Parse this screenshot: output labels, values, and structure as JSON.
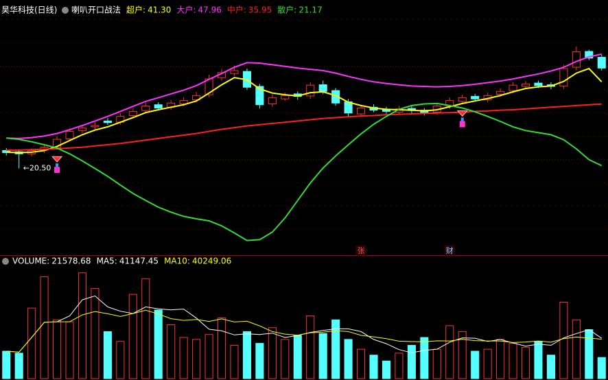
{
  "chart_data": [
    {
      "type": "candlestick",
      "title": "昊华科技(日线)",
      "subtitle": "喇叭开口战法",
      "separator": ":",
      "up_color": "#ff3232",
      "down_color": "#54ffff",
      "ylim": [
        0,
        57
      ],
      "open": [
        24.8,
        24.5,
        24.0,
        24.9,
        25.5,
        27.6,
        29.6,
        30.5,
        31.9,
        31.6,
        33.2,
        34.4,
        35.8,
        35.2,
        36.0,
        37.0,
        38.2,
        42.3,
        43.3,
        43.8,
        40.2,
        36.0,
        37.2,
        38.4,
        37.9,
        40.6,
        39.2,
        36.5,
        33.6,
        35.2,
        34.7,
        34.0,
        34.9,
        34.5,
        34.0,
        35.4,
        36.6,
        37.8,
        37.0,
        38.3,
        39.2,
        40.2,
        41.0,
        40.6,
        40.3,
        44.8,
        48.6,
        47.2
      ],
      "high": [
        25.4,
        25.0,
        25.3,
        26.2,
        28.2,
        30.1,
        30.9,
        31.6,
        32.6,
        33.8,
        34.9,
        36.3,
        36.4,
        36.9,
        37.6,
        38.9,
        43.0,
        44.4,
        45.2,
        44.5,
        40.8,
        38.3,
        38.7,
        39.0,
        41.2,
        41.6,
        39.8,
        37.2,
        35.7,
        35.9,
        35.3,
        35.5,
        35.6,
        35.0,
        36.2,
        37.5,
        38.2,
        38.4,
        38.7,
        39.7,
        41.2,
        41.5,
        41.6,
        41.2,
        45.4,
        49.8,
        49.0,
        47.8
      ],
      "low": [
        23.6,
        20.5,
        23.4,
        24.2,
        25.0,
        27.0,
        29.0,
        29.9,
        30.9,
        31.0,
        32.6,
        33.9,
        34.4,
        34.6,
        35.4,
        36.4,
        37.6,
        41.6,
        42.7,
        39.4,
        34.9,
        35.3,
        36.8,
        37.0,
        37.2,
        38.4,
        35.6,
        33.0,
        33.0,
        34.0,
        33.6,
        33.5,
        33.8,
        33.2,
        33.4,
        34.8,
        36.0,
        36.6,
        36.4,
        37.7,
        38.6,
        39.6,
        39.8,
        39.5,
        39.6,
        44.0,
        46.5,
        44.0
      ],
      "close": [
        24.3,
        24.0,
        24.8,
        25.6,
        27.5,
        29.4,
        30.2,
        30.8,
        31.5,
        33.0,
        34.2,
        35.5,
        35.0,
        36.2,
        36.8,
        38.0,
        42.0,
        43.5,
        44.0,
        40.0,
        35.8,
        37.5,
        38.0,
        37.8,
        40.5,
        39.0,
        36.2,
        33.8,
        35.0,
        34.5,
        34.2,
        34.8,
        34.4,
        33.9,
        35.5,
        36.8,
        37.5,
        37.2,
        38.0,
        39.0,
        40.5,
        40.8,
        40.4,
        40.2,
        44.5,
        48.5,
        47.0,
        44.6
      ],
      "series": [
        {
          "name": "超户",
          "color": "#ffff00",
          "values": [
            24.4,
            24.3,
            24.4,
            24.8,
            25.8,
            27.2,
            28.6,
            29.7,
            30.5,
            31.6,
            32.7,
            33.9,
            34.6,
            35.2,
            35.8,
            36.7,
            38.6,
            40.6,
            42.3,
            41.8,
            39.6,
            38.6,
            38.2,
            37.9,
            38.7,
            38.9,
            38.0,
            36.4,
            35.6,
            35.0,
            34.7,
            34.6,
            34.5,
            34.3,
            34.6,
            35.3,
            36.1,
            36.7,
            37.3,
            38.0,
            38.9,
            39.7,
            40.1,
            40.3,
            41.4,
            43.4,
            44.5,
            41.3
          ],
          "value_labels": [
            null,
            null,
            null,
            null,
            null,
            null,
            null,
            null,
            null,
            null,
            null,
            null,
            null,
            null,
            null,
            null,
            null,
            null,
            null,
            null,
            null,
            null,
            null,
            null,
            null,
            null,
            null,
            null,
            null,
            null,
            null,
            null,
            null,
            null,
            null,
            null,
            null,
            null,
            null,
            null,
            null,
            null,
            null,
            null,
            null,
            null,
            null,
            "41.30"
          ]
        },
        {
          "name": "大户",
          "color": "#ff33ff",
          "values": [
            27.8,
            27.7,
            27.9,
            28.3,
            28.9,
            29.8,
            30.8,
            31.9,
            33.0,
            34.2,
            35.4,
            36.6,
            37.5,
            38.4,
            39.3,
            40.4,
            41.9,
            43.3,
            44.8,
            45.9,
            45.8,
            45.4,
            45.0,
            44.6,
            44.3,
            44.0,
            43.4,
            42.6,
            41.9,
            41.3,
            40.9,
            40.6,
            40.3,
            40.2,
            40.1,
            40.2,
            40.4,
            40.7,
            41.1,
            41.5,
            42.0,
            42.6,
            43.2,
            43.9,
            44.8,
            46.2,
            47.3,
            47.96
          ]
        },
        {
          "name": "中户",
          "color": "#ff2020",
          "values": [
            24.9,
            24.9,
            25.0,
            25.1,
            25.2,
            25.4,
            25.6,
            25.9,
            26.2,
            26.5,
            26.9,
            27.3,
            27.7,
            28.1,
            28.5,
            28.9,
            29.4,
            29.9,
            30.3,
            30.7,
            31.0,
            31.3,
            31.6,
            31.9,
            32.2,
            32.5,
            32.7,
            32.9,
            33.1,
            33.2,
            33.4,
            33.5,
            33.6,
            33.7,
            33.8,
            33.9,
            34.0,
            34.2,
            34.3,
            34.5,
            34.6,
            34.8,
            35.0,
            35.2,
            35.4,
            35.6,
            35.8,
            35.95
          ]
        },
        {
          "name": "散户",
          "color": "#33dd33",
          "values": [
            27.8,
            27.5,
            26.9,
            26.2,
            25.4,
            24.0,
            22.3,
            20.5,
            18.6,
            16.5,
            14.5,
            12.8,
            11.2,
            10.0,
            9.0,
            8.4,
            7.9,
            6.7,
            5.0,
            3.2,
            3.4,
            5.2,
            8.6,
            12.8,
            17.0,
            20.6,
            23.5,
            26.2,
            28.8,
            31.1,
            33.0,
            34.7,
            35.6,
            36.0,
            36.1,
            35.6,
            35.0,
            34.1,
            33.0,
            31.8,
            30.5,
            29.6,
            29.1,
            28.6,
            27.4,
            25.2,
            22.6,
            21.17
          ]
        }
      ],
      "annotations": [
        {
          "label": "←20.50",
          "value": 20.5,
          "index": 1
        }
      ],
      "signals": [
        4,
        36
      ],
      "signal_color": "#ff33cc",
      "markers": [
        {
          "label": "张",
          "index": 28,
          "color": "#ff5050"
        },
        {
          "label": "财",
          "index": 35,
          "color": "#8fc8ff"
        }
      ]
    },
    {
      "type": "volume",
      "separator": ":",
      "ylim": [
        0,
        112000
      ],
      "series": [
        {
          "name": "VOLUME",
          "color": "#ffffff",
          "values": [
            28000,
            26000,
            72000,
            104000,
            60000,
            58000,
            108000,
            92000,
            48000,
            38000,
            86000,
            102000,
            70000,
            55000,
            42000,
            40000,
            45000,
            62000,
            34000,
            48000,
            36000,
            52000,
            40000,
            44000,
            64000,
            46000,
            60000,
            40000,
            30000,
            24000,
            18000,
            26000,
            34000,
            42000,
            30000,
            54000,
            48000,
            28000,
            30000,
            40000,
            36000,
            32000,
            38000,
            24000,
            78000,
            60000,
            50000,
            21578.68
          ]
        },
        {
          "name": "MA5",
          "color": "#ffffff",
          "values": [
            28000,
            27000,
            42000,
            57500,
            58000,
            64000,
            80400,
            84400,
            73200,
            68800,
            66400,
            73200,
            71200,
            70200,
            71000,
            61800,
            50400,
            48800,
            44600,
            45800,
            45000,
            46400,
            42000,
            44000,
            47200,
            49200,
            50800,
            50800,
            48000,
            40000,
            35600,
            29600,
            26400,
            28800,
            30000,
            37200,
            41600,
            41200,
            38000,
            40000,
            36400,
            33200,
            35200,
            34000,
            41600,
            46000,
            50000,
            41147.45
          ]
        },
        {
          "name": "MA10",
          "color": "#ffff00",
          "values": [
            28000,
            27000,
            42000,
            57500,
            58000,
            58000,
            65000,
            68500,
            66200,
            63400,
            66400,
            69800,
            66000,
            61200,
            59400,
            60400,
            58400,
            61000,
            57800,
            58600,
            53800,
            48000,
            45400,
            44400,
            46800,
            47400,
            48900,
            48000,
            44200,
            42600,
            40800,
            38200,
            37800,
            37600,
            38600,
            38400,
            40200,
            38800,
            38400,
            38400,
            36800,
            37400,
            38400,
            37200,
            40800,
            42400,
            41400,
            40249.06
          ]
        }
      ]
    }
  ]
}
